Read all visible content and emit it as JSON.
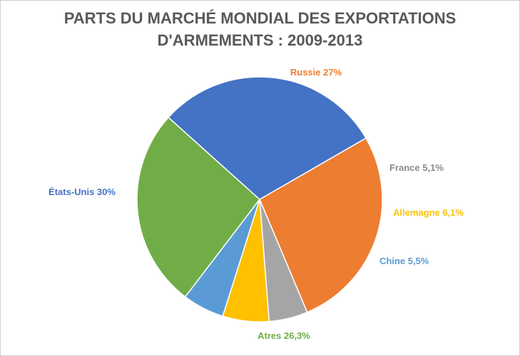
{
  "chart_data": {
    "type": "pie",
    "title_lines": [
      "PARTS DU MARCHÉ MONDIAL DES EXPORTATIONS",
      "D'ARMEMENTS : 2009-2013"
    ],
    "slices": [
      {
        "label": "Russie 27%",
        "value": 27,
        "color": "#ED7D31"
      },
      {
        "label": "France 5,1%",
        "value": 5.1,
        "color": "#A5A5A5"
      },
      {
        "label": "Allemagne 6,1%",
        "value": 6.1,
        "color": "#FFC000"
      },
      {
        "label": "Chine 5,5%",
        "value": 5.5,
        "color": "#5B9BD5"
      },
      {
        "label": "Atres 26,3%",
        "value": 26.3,
        "color": "#70AD47"
      },
      {
        "label": "États-Unis 30%",
        "value": 30,
        "color": "#4472C4"
      }
    ]
  }
}
